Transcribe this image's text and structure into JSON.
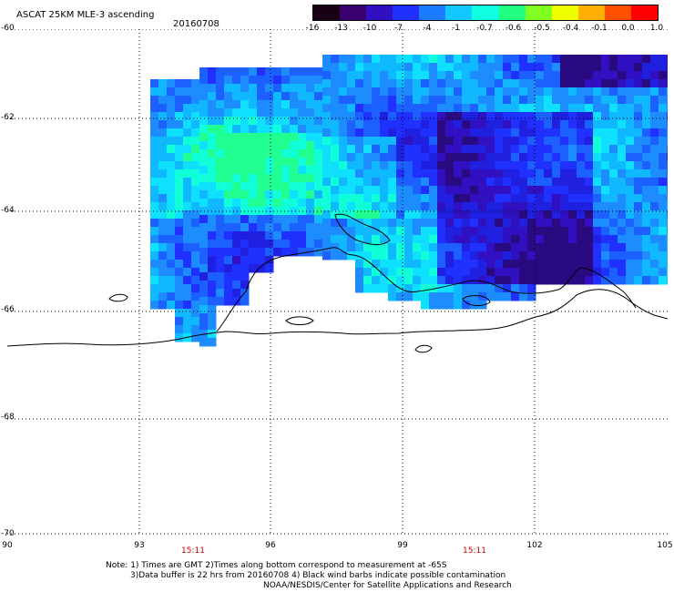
{
  "header": {
    "title": "ASCAT 25KM MLE-3 ascending",
    "date": "20160708"
  },
  "colorbar": {
    "labels": [
      "-16",
      "-13",
      "-10",
      "-7",
      "-4",
      "-1",
      "-0.7",
      "-0.6",
      "-0.5",
      "-0.4",
      "-0.1",
      "0.0",
      "1.0"
    ],
    "colors": [
      "#1a0015",
      "#3a0070",
      "#3010c0",
      "#1f30ff",
      "#1c7cff",
      "#10c8ff",
      "#10ffe0",
      "#20ff80",
      "#80ff20",
      "#f0ff00",
      "#ffb000",
      "#ff5000",
      "#ff0000"
    ]
  },
  "map": {
    "lat_labels": [
      "-60",
      "-62",
      "-64",
      "-66",
      "-68",
      "-70"
    ],
    "lon_labels": [
      "90",
      "93",
      "96",
      "99",
      "102",
      "105"
    ],
    "time_labels": [
      "15:11",
      "15:11"
    ],
    "lat_range": [
      -70,
      -60
    ],
    "lon_range": [
      90,
      105
    ]
  },
  "footer": {
    "line1": "Note: 1) Times are GMT 2)Times along bottom correspond to measurement at -65S",
    "line2": "3)Data buffer is 22 hrs from 20160708 4) Black wind barbs indicate possible contamination",
    "line3": "NOAA/NESDIS/Center for Satellite Applications and Research"
  }
}
